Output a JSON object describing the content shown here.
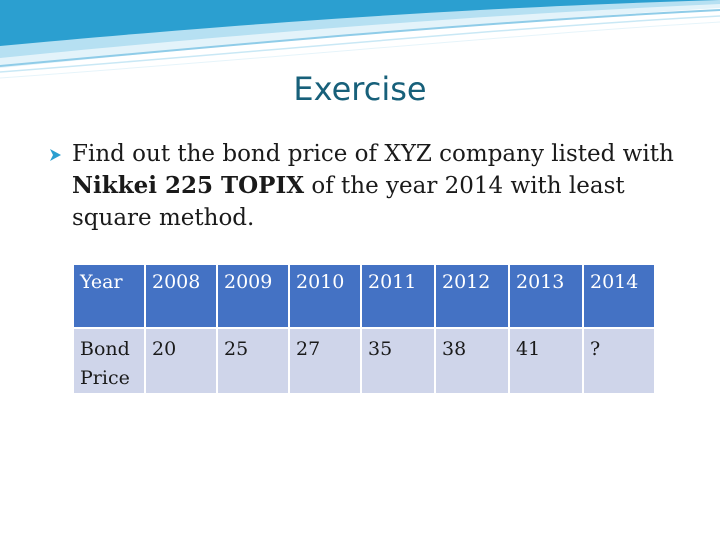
{
  "slide": {
    "title": "Exercise",
    "bullet": {
      "prefix": "Find out the bond price of XYZ company listed with ",
      "bold": "Nikkei 225 TOPIX",
      "suffix": " of the year 2014 with least square method."
    },
    "table": {
      "header": [
        "Year",
        "2008",
        "2009",
        "2010",
        "2011",
        "2012",
        "2013",
        "2014"
      ],
      "row_label": "Bond Price",
      "values": [
        "20",
        "25",
        "27",
        "35",
        "38",
        "41",
        "?"
      ]
    }
  },
  "colors": {
    "title": "#17607a",
    "header_bg": "#4472c4",
    "row_bg": "#cfd5ea",
    "band_top": "#2b9fd0",
    "band_light": "#d8eef8"
  }
}
